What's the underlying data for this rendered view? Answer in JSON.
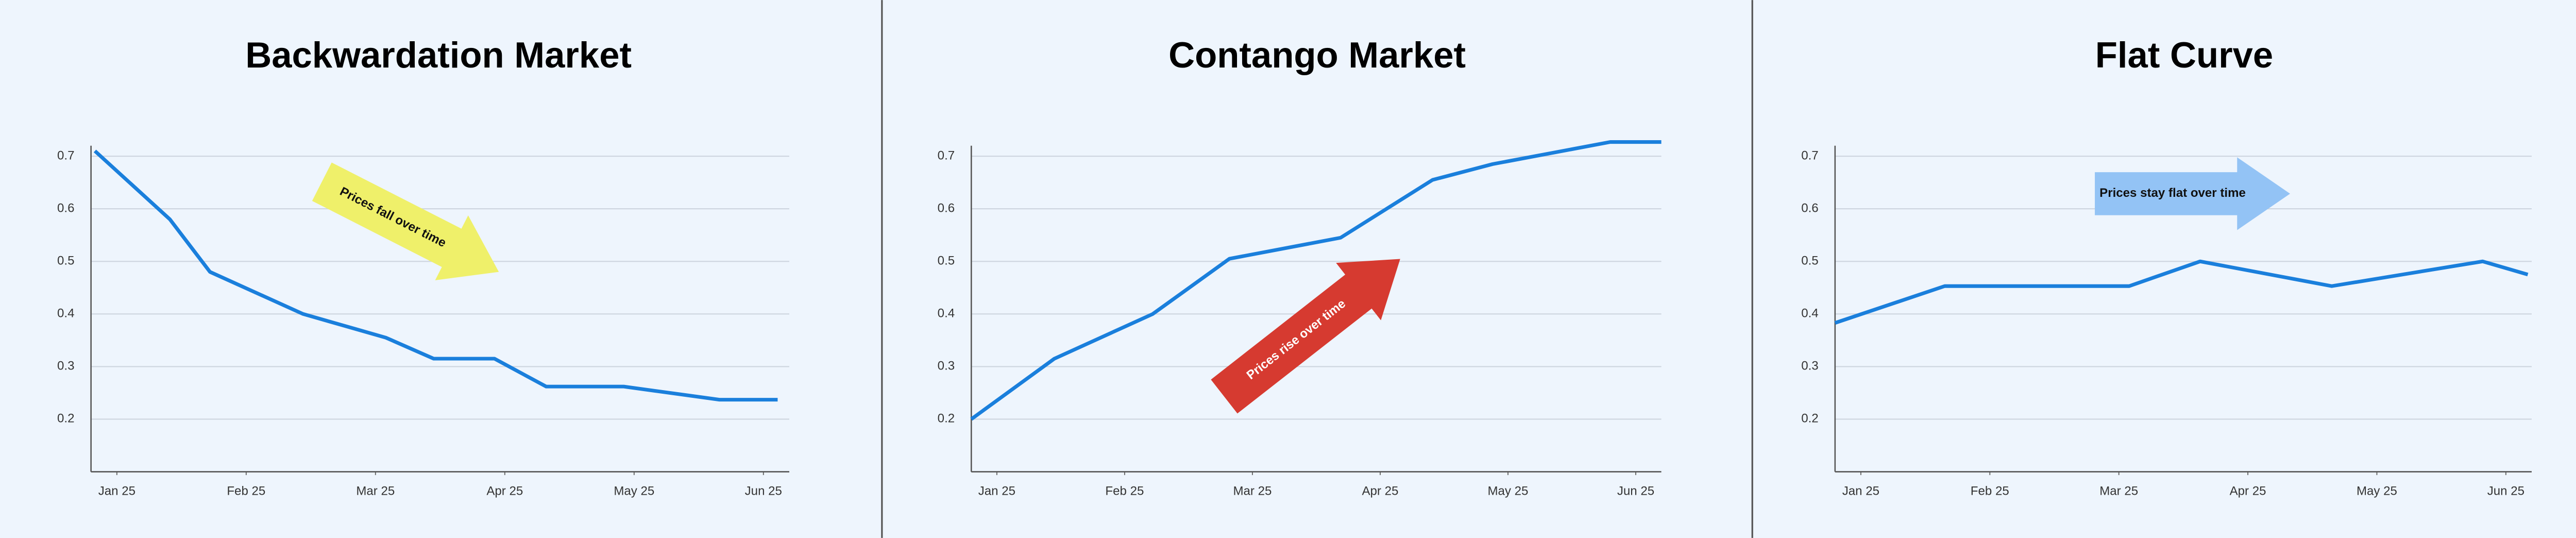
{
  "chart_data": [
    {
      "type": "line",
      "title": "Backwardation Market",
      "x": [
        -0.17,
        0.41,
        0.72,
        1.44,
        2.08,
        2.45,
        2.92,
        3.32,
        3.92,
        4.66,
        5.11
      ],
      "series": [
        {
          "color": "#1a7fdc",
          "values": [
            0.71,
            0.58,
            0.48,
            0.4,
            0.355,
            0.315,
            0.315,
            0.262,
            0.262,
            0.237,
            0.237
          ]
        }
      ],
      "xlim": [
        -0.2,
        5.2
      ],
      "ylim": [
        0.1,
        0.72
      ],
      "xticks": [
        {
          "value": 0,
          "label": "Jan 25"
        },
        {
          "value": 1,
          "label": "Feb 25"
        },
        {
          "value": 2,
          "label": "Mar 25"
        },
        {
          "value": 3,
          "label": "Apr 25"
        },
        {
          "value": 4,
          "label": "May 25"
        },
        {
          "value": 5,
          "label": "Jun 25"
        }
      ],
      "yticks": [
        0.2,
        0.3,
        0.4,
        0.5,
        0.6,
        0.7
      ],
      "grid": true,
      "annotation": {
        "text": "Prices fall over time",
        "color": "#eff06a"
      }
    },
    {
      "type": "line",
      "title": "Contango Market",
      "x": [
        -0.2,
        0.45,
        1.22,
        1.82,
        2.69,
        3.41,
        3.88,
        4.8,
        5.2
      ],
      "series": [
        {
          "color": "#1a7fdc",
          "values": [
            0.2,
            0.315,
            0.4,
            0.505,
            0.545,
            0.655,
            0.685,
            0.727,
            0.727
          ]
        }
      ],
      "xlim": [
        -0.2,
        5.2
      ],
      "ylim": [
        0.1,
        0.72
      ],
      "xticks": [
        {
          "value": 0,
          "label": "Jan 25"
        },
        {
          "value": 1,
          "label": "Feb 25"
        },
        {
          "value": 2,
          "label": "Mar 25"
        },
        {
          "value": 3,
          "label": "Apr 25"
        },
        {
          "value": 4,
          "label": "May 25"
        },
        {
          "value": 5,
          "label": "Jun 25"
        }
      ],
      "yticks": [
        0.2,
        0.3,
        0.4,
        0.5,
        0.6,
        0.7
      ],
      "grid": true,
      "annotation": {
        "text": "Prices rise over time",
        "color": "#d63a30"
      }
    },
    {
      "type": "line",
      "title": "Flat Curve",
      "x": [
        -0.2,
        0.65,
        2.08,
        2.63,
        3.65,
        4.82,
        5.17
      ],
      "series": [
        {
          "color": "#1a7fdc",
          "values": [
            0.383,
            0.453,
            0.453,
            0.5,
            0.453,
            0.5,
            0.475
          ]
        }
      ],
      "xlim": [
        -0.2,
        5.2
      ],
      "ylim": [
        0.1,
        0.72
      ],
      "xticks": [
        {
          "value": 0,
          "label": "Jan 25"
        },
        {
          "value": 1,
          "label": "Feb 25"
        },
        {
          "value": 2,
          "label": "Mar 25"
        },
        {
          "value": 3,
          "label": "Apr 25"
        },
        {
          "value": 4,
          "label": "May 25"
        },
        {
          "value": 5,
          "label": "Jun 25"
        }
      ],
      "yticks": [
        0.2,
        0.3,
        0.4,
        0.5,
        0.6,
        0.7
      ],
      "grid": true,
      "annotation": {
        "text": "Prices stay flat over time",
        "color": "#93c3f5"
      }
    }
  ]
}
